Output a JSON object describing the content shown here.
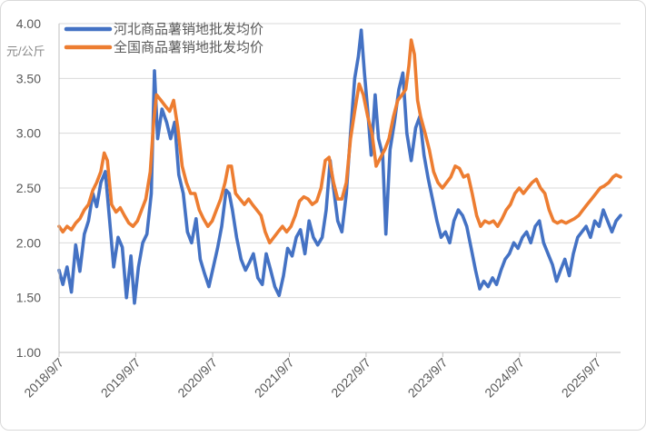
{
  "chart_data": {
    "type": "line",
    "ylabel": "元/公斤",
    "ylim": [
      1.0,
      4.0
    ],
    "yticks": [
      "1.00",
      "1.50",
      "2.00",
      "2.50",
      "3.00",
      "3.50",
      "4.00"
    ],
    "xlim": [
      "2018/9/7",
      "2025/12/31"
    ],
    "xticks": [
      "2018/9/7",
      "2019/9/7",
      "2020/9/7",
      "2021/9/7",
      "2022/9/7",
      "2023/9/7",
      "2024/9/7",
      "2025/9/7"
    ],
    "grid": true,
    "legend_position": "top-left",
    "series": [
      {
        "name": "河北商品薯销地批发均价",
        "color": "#4472c4",
        "points": [
          [
            "2018-09-07",
            1.75
          ],
          [
            "2018-09-25",
            1.62
          ],
          [
            "2018-10-15",
            1.78
          ],
          [
            "2018-11-05",
            1.55
          ],
          [
            "2018-11-25",
            1.98
          ],
          [
            "2018-12-15",
            1.74
          ],
          [
            "2019-01-05",
            2.08
          ],
          [
            "2019-01-25",
            2.2
          ],
          [
            "2019-02-15",
            2.45
          ],
          [
            "2019-03-05",
            2.33
          ],
          [
            "2019-03-25",
            2.55
          ],
          [
            "2019-04-15",
            2.65
          ],
          [
            "2019-05-05",
            2.22
          ],
          [
            "2019-05-25",
            1.78
          ],
          [
            "2019-06-15",
            2.05
          ],
          [
            "2019-07-05",
            1.96
          ],
          [
            "2019-07-25",
            1.5
          ],
          [
            "2019-08-15",
            1.88
          ],
          [
            "2019-09-01",
            1.45
          ],
          [
            "2019-09-20",
            1.78
          ],
          [
            "2019-10-10",
            2.0
          ],
          [
            "2019-10-30",
            2.08
          ],
          [
            "2019-11-20",
            2.45
          ],
          [
            "2019-12-05",
            3.57
          ],
          [
            "2019-12-20",
            2.95
          ],
          [
            "2020-01-10",
            3.22
          ],
          [
            "2020-02-01",
            3.1
          ],
          [
            "2020-02-20",
            2.95
          ],
          [
            "2020-03-10",
            3.1
          ],
          [
            "2020-03-30",
            2.62
          ],
          [
            "2020-04-20",
            2.45
          ],
          [
            "2020-05-10",
            2.1
          ],
          [
            "2020-05-30",
            2.0
          ],
          [
            "2020-06-20",
            2.22
          ],
          [
            "2020-07-10",
            1.85
          ],
          [
            "2020-07-30",
            1.72
          ],
          [
            "2020-08-20",
            1.6
          ],
          [
            "2020-09-10",
            1.78
          ],
          [
            "2020-09-30",
            1.95
          ],
          [
            "2020-10-20",
            2.15
          ],
          [
            "2020-11-10",
            2.48
          ],
          [
            "2020-11-25",
            2.45
          ],
          [
            "2020-12-10",
            2.3
          ],
          [
            "2020-12-30",
            2.05
          ],
          [
            "2021-01-20",
            1.85
          ],
          [
            "2021-02-10",
            1.75
          ],
          [
            "2021-03-01",
            1.82
          ],
          [
            "2021-03-20",
            1.9
          ],
          [
            "2021-04-10",
            1.68
          ],
          [
            "2021-05-01",
            1.62
          ],
          [
            "2021-05-20",
            1.9
          ],
          [
            "2021-06-10",
            1.75
          ],
          [
            "2021-06-30",
            1.6
          ],
          [
            "2021-07-20",
            1.52
          ],
          [
            "2021-08-10",
            1.7
          ],
          [
            "2021-08-30",
            1.95
          ],
          [
            "2021-09-20",
            1.88
          ],
          [
            "2021-10-10",
            2.05
          ],
          [
            "2021-10-30",
            2.12
          ],
          [
            "2021-11-20",
            1.9
          ],
          [
            "2021-12-10",
            2.2
          ],
          [
            "2021-12-30",
            2.05
          ],
          [
            "2022-01-20",
            1.98
          ],
          [
            "2022-02-10",
            2.05
          ],
          [
            "2022-03-01",
            2.3
          ],
          [
            "2022-03-20",
            2.75
          ],
          [
            "2022-04-05",
            2.5
          ],
          [
            "2022-04-25",
            2.2
          ],
          [
            "2022-05-15",
            2.1
          ],
          [
            "2022-06-05",
            2.45
          ],
          [
            "2022-06-25",
            3.0
          ],
          [
            "2022-07-15",
            3.5
          ],
          [
            "2022-08-01",
            3.7
          ],
          [
            "2022-08-15",
            3.94
          ],
          [
            "2022-08-30",
            3.55
          ],
          [
            "2022-09-15",
            3.2
          ],
          [
            "2022-10-01",
            2.8
          ],
          [
            "2022-10-20",
            3.35
          ],
          [
            "2022-11-05",
            2.95
          ],
          [
            "2022-11-25",
            2.8
          ],
          [
            "2022-12-10",
            2.08
          ],
          [
            "2022-12-30",
            2.85
          ],
          [
            "2023-01-20",
            3.1
          ],
          [
            "2023-02-10",
            3.4
          ],
          [
            "2023-03-01",
            3.55
          ],
          [
            "2023-03-20",
            3.0
          ],
          [
            "2023-04-10",
            2.75
          ],
          [
            "2023-05-01",
            3.05
          ],
          [
            "2023-05-20",
            3.15
          ],
          [
            "2023-06-10",
            2.8
          ],
          [
            "2023-06-30",
            2.58
          ],
          [
            "2023-07-20",
            2.4
          ],
          [
            "2023-08-10",
            2.2
          ],
          [
            "2023-08-30",
            2.05
          ],
          [
            "2023-09-20",
            2.1
          ],
          [
            "2023-10-10",
            2.0
          ],
          [
            "2023-10-30",
            2.2
          ],
          [
            "2023-11-20",
            2.3
          ],
          [
            "2023-12-10",
            2.25
          ],
          [
            "2023-12-30",
            2.15
          ],
          [
            "2024-01-20",
            1.95
          ],
          [
            "2024-02-10",
            1.75
          ],
          [
            "2024-03-01",
            1.58
          ],
          [
            "2024-03-20",
            1.65
          ],
          [
            "2024-04-10",
            1.6
          ],
          [
            "2024-05-01",
            1.68
          ],
          [
            "2024-05-20",
            1.62
          ],
          [
            "2024-06-10",
            1.75
          ],
          [
            "2024-06-30",
            1.85
          ],
          [
            "2024-07-20",
            1.9
          ],
          [
            "2024-08-10",
            2.0
          ],
          [
            "2024-08-30",
            1.95
          ],
          [
            "2024-09-20",
            2.05
          ],
          [
            "2024-10-10",
            2.1
          ],
          [
            "2024-10-30",
            2.0
          ],
          [
            "2024-11-20",
            2.15
          ],
          [
            "2024-12-10",
            2.2
          ],
          [
            "2024-12-30",
            2.0
          ],
          [
            "2025-01-20",
            1.9
          ],
          [
            "2025-02-10",
            1.8
          ],
          [
            "2025-03-01",
            1.65
          ],
          [
            "2025-03-20",
            1.75
          ],
          [
            "2025-04-10",
            1.85
          ],
          [
            "2025-05-01",
            1.7
          ],
          [
            "2025-05-20",
            1.9
          ],
          [
            "2025-06-10",
            2.05
          ],
          [
            "2025-06-30",
            2.1
          ],
          [
            "2025-07-20",
            2.15
          ],
          [
            "2025-08-10",
            2.05
          ],
          [
            "2025-08-30",
            2.2
          ],
          [
            "2025-09-20",
            2.15
          ],
          [
            "2025-10-10",
            2.3
          ],
          [
            "2025-10-30",
            2.2
          ],
          [
            "2025-11-20",
            2.1
          ],
          [
            "2025-12-10",
            2.2
          ],
          [
            "2025-12-31",
            2.25
          ]
        ]
      },
      {
        "name": "全国商品薯销地批发均价",
        "color": "#ed7d31",
        "points": [
          [
            "2018-09-07",
            2.15
          ],
          [
            "2018-09-25",
            2.1
          ],
          [
            "2018-10-15",
            2.15
          ],
          [
            "2018-11-05",
            2.12
          ],
          [
            "2018-11-25",
            2.18
          ],
          [
            "2018-12-15",
            2.22
          ],
          [
            "2019-01-05",
            2.3
          ],
          [
            "2019-01-25",
            2.35
          ],
          [
            "2019-02-15",
            2.48
          ],
          [
            "2019-03-05",
            2.55
          ],
          [
            "2019-03-25",
            2.65
          ],
          [
            "2019-04-10",
            2.82
          ],
          [
            "2019-04-25",
            2.75
          ],
          [
            "2019-05-15",
            2.35
          ],
          [
            "2019-06-05",
            2.28
          ],
          [
            "2019-06-25",
            2.32
          ],
          [
            "2019-07-15",
            2.25
          ],
          [
            "2019-08-05",
            2.18
          ],
          [
            "2019-08-25",
            2.15
          ],
          [
            "2019-09-15",
            2.2
          ],
          [
            "2019-10-05",
            2.3
          ],
          [
            "2019-10-25",
            2.4
          ],
          [
            "2019-11-15",
            2.65
          ],
          [
            "2019-12-01",
            3.1
          ],
          [
            "2019-12-15",
            3.35
          ],
          [
            "2020-01-05",
            3.3
          ],
          [
            "2020-01-25",
            3.25
          ],
          [
            "2020-02-15",
            3.2
          ],
          [
            "2020-03-05",
            3.3
          ],
          [
            "2020-03-25",
            3.05
          ],
          [
            "2020-04-15",
            2.7
          ],
          [
            "2020-05-05",
            2.55
          ],
          [
            "2020-05-25",
            2.45
          ],
          [
            "2020-06-15",
            2.45
          ],
          [
            "2020-07-05",
            2.3
          ],
          [
            "2020-07-25",
            2.22
          ],
          [
            "2020-08-15",
            2.15
          ],
          [
            "2020-09-05",
            2.2
          ],
          [
            "2020-09-25",
            2.3
          ],
          [
            "2020-10-15",
            2.4
          ],
          [
            "2020-11-05",
            2.55
          ],
          [
            "2020-11-20",
            2.7
          ],
          [
            "2020-12-05",
            2.7
          ],
          [
            "2020-12-25",
            2.45
          ],
          [
            "2021-01-15",
            2.4
          ],
          [
            "2021-02-05",
            2.35
          ],
          [
            "2021-02-25",
            2.4
          ],
          [
            "2021-03-15",
            2.35
          ],
          [
            "2021-04-05",
            2.3
          ],
          [
            "2021-04-25",
            2.25
          ],
          [
            "2021-05-15",
            2.1
          ],
          [
            "2021-06-05",
            2.0
          ],
          [
            "2021-06-25",
            2.05
          ],
          [
            "2021-07-15",
            2.1
          ],
          [
            "2021-08-05",
            2.15
          ],
          [
            "2021-08-25",
            2.1
          ],
          [
            "2021-09-15",
            2.15
          ],
          [
            "2021-10-05",
            2.25
          ],
          [
            "2021-10-25",
            2.38
          ],
          [
            "2021-11-15",
            2.42
          ],
          [
            "2021-12-05",
            2.4
          ],
          [
            "2021-12-25",
            2.35
          ],
          [
            "2022-01-15",
            2.38
          ],
          [
            "2022-02-05",
            2.5
          ],
          [
            "2022-02-25",
            2.75
          ],
          [
            "2022-03-15",
            2.78
          ],
          [
            "2022-04-05",
            2.55
          ],
          [
            "2022-04-25",
            2.4
          ],
          [
            "2022-05-15",
            2.4
          ],
          [
            "2022-06-05",
            2.55
          ],
          [
            "2022-06-25",
            2.95
          ],
          [
            "2022-07-15",
            3.2
          ],
          [
            "2022-08-05",
            3.45
          ],
          [
            "2022-08-25",
            3.35
          ],
          [
            "2022-09-15",
            3.15
          ],
          [
            "2022-10-05",
            3.0
          ],
          [
            "2022-10-25",
            2.7
          ],
          [
            "2022-11-15",
            2.78
          ],
          [
            "2022-12-05",
            2.85
          ],
          [
            "2022-12-25",
            2.95
          ],
          [
            "2023-01-15",
            3.15
          ],
          [
            "2023-02-05",
            3.3
          ],
          [
            "2023-02-25",
            3.35
          ],
          [
            "2023-03-15",
            3.4
          ],
          [
            "2023-03-30",
            3.62
          ],
          [
            "2023-04-10",
            3.85
          ],
          [
            "2023-04-25",
            3.72
          ],
          [
            "2023-05-10",
            3.3
          ],
          [
            "2023-05-25",
            3.15
          ],
          [
            "2023-06-15",
            3.0
          ],
          [
            "2023-07-05",
            2.85
          ],
          [
            "2023-07-25",
            2.65
          ],
          [
            "2023-08-15",
            2.55
          ],
          [
            "2023-09-05",
            2.5
          ],
          [
            "2023-09-25",
            2.55
          ],
          [
            "2023-10-15",
            2.6
          ],
          [
            "2023-11-05",
            2.7
          ],
          [
            "2023-11-25",
            2.68
          ],
          [
            "2023-12-15",
            2.6
          ],
          [
            "2024-01-05",
            2.62
          ],
          [
            "2024-01-25",
            2.45
          ],
          [
            "2024-02-15",
            2.25
          ],
          [
            "2024-03-05",
            2.15
          ],
          [
            "2024-03-25",
            2.2
          ],
          [
            "2024-04-15",
            2.18
          ],
          [
            "2024-05-05",
            2.2
          ],
          [
            "2024-05-25",
            2.15
          ],
          [
            "2024-06-15",
            2.22
          ],
          [
            "2024-07-05",
            2.3
          ],
          [
            "2024-07-25",
            2.35
          ],
          [
            "2024-08-15",
            2.45
          ],
          [
            "2024-09-05",
            2.5
          ],
          [
            "2024-09-25",
            2.45
          ],
          [
            "2024-10-15",
            2.5
          ],
          [
            "2024-11-05",
            2.55
          ],
          [
            "2024-11-25",
            2.58
          ],
          [
            "2024-12-15",
            2.5
          ],
          [
            "2025-01-05",
            2.45
          ],
          [
            "2025-01-25",
            2.3
          ],
          [
            "2025-02-15",
            2.2
          ],
          [
            "2025-03-05",
            2.18
          ],
          [
            "2025-03-25",
            2.2
          ],
          [
            "2025-04-15",
            2.18
          ],
          [
            "2025-05-05",
            2.2
          ],
          [
            "2025-05-25",
            2.22
          ],
          [
            "2025-06-15",
            2.25
          ],
          [
            "2025-07-05",
            2.3
          ],
          [
            "2025-07-25",
            2.35
          ],
          [
            "2025-08-15",
            2.4
          ],
          [
            "2025-09-05",
            2.45
          ],
          [
            "2025-09-25",
            2.5
          ],
          [
            "2025-10-15",
            2.52
          ],
          [
            "2025-11-05",
            2.55
          ],
          [
            "2025-11-25",
            2.6
          ],
          [
            "2025-12-10",
            2.62
          ],
          [
            "2025-12-31",
            2.6
          ]
        ]
      }
    ]
  }
}
